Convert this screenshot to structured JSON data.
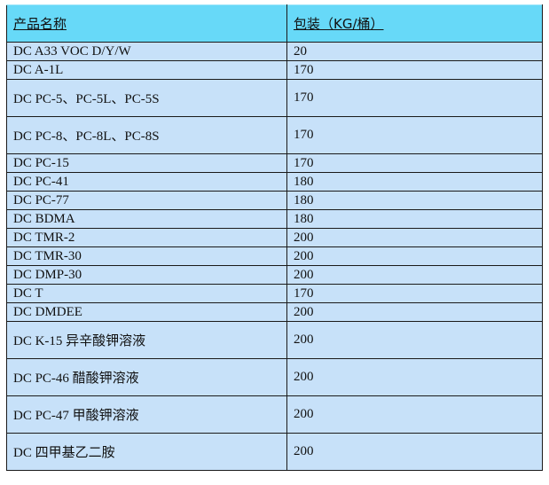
{
  "table": {
    "headers": [
      "产品名称",
      "包装（KG/桶）"
    ],
    "rows": [
      {
        "name": "DC A33 VOC D/Y/W",
        "pack": "20",
        "tall": false
      },
      {
        "name": "DC A-1L",
        "pack": "170",
        "tall": false
      },
      {
        "name": "DC PC-5、PC-5L、PC-5S",
        "pack": "170",
        "tall": true
      },
      {
        "name": "DC PC-8、PC-8L、PC-8S",
        "pack": "170",
        "tall": true
      },
      {
        "name": "DC PC-15",
        "pack": "170",
        "tall": false
      },
      {
        "name": "DC PC-41",
        "pack": "180",
        "tall": false
      },
      {
        "name": "DC PC-77",
        "pack": "180",
        "tall": false
      },
      {
        "name": "DC BDMA",
        "pack": "180",
        "tall": false
      },
      {
        "name": "DC TMR-2",
        "pack": "200",
        "tall": false
      },
      {
        "name": "DC TMR-30",
        "pack": "200",
        "tall": false
      },
      {
        "name": "DC DMP-30",
        "pack": "200",
        "tall": false
      },
      {
        "name": "DC T",
        "pack": "170",
        "tall": false
      },
      {
        "name": "DC DMDEE",
        "pack": "200",
        "tall": false
      },
      {
        "name": "DC K-15 异辛酸钾溶液",
        "pack": "200",
        "tall": true
      },
      {
        "name": "DC PC-46 醋酸钾溶液",
        "pack": "200",
        "tall": true
      },
      {
        "name": "DC PC-47 甲酸钾溶液",
        "pack": "200",
        "tall": true
      },
      {
        "name": "DC  四甲基乙二胺",
        "pack": "200",
        "tall": true
      }
    ]
  },
  "colors": {
    "header_bg": "#67d9f8",
    "row_bg": "#c7e1f9"
  }
}
